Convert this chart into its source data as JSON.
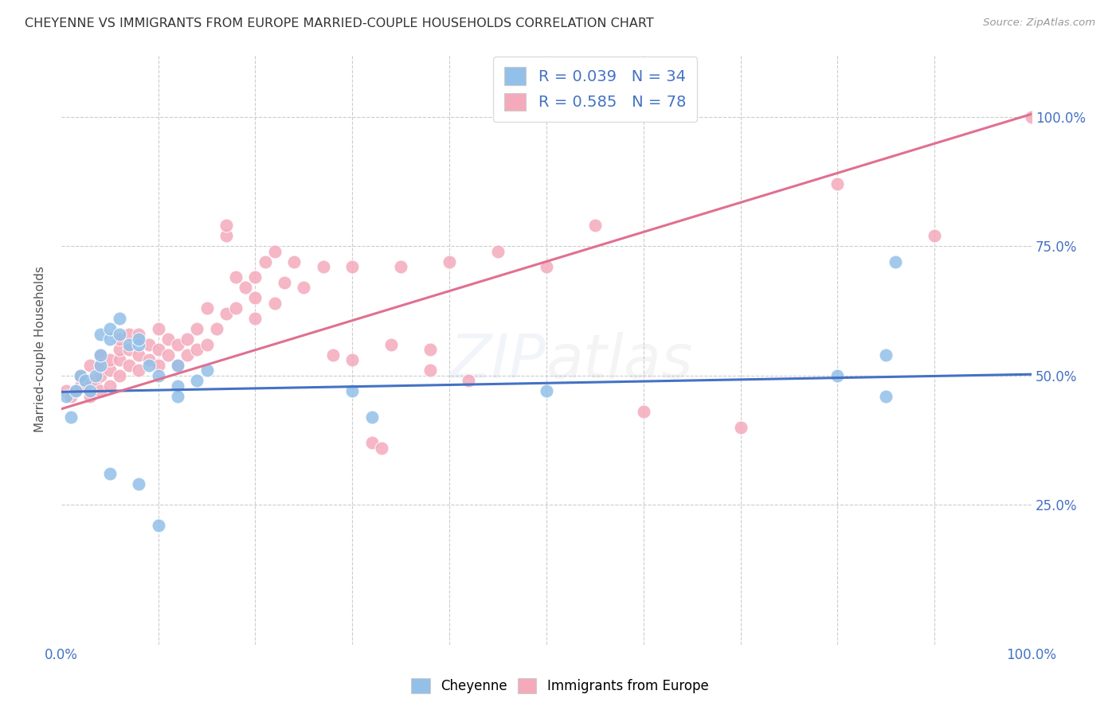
{
  "title": "CHEYENNE VS IMMIGRANTS FROM EUROPE MARRIED-COUPLE HOUSEHOLDS CORRELATION CHART",
  "source": "Source: ZipAtlas.com",
  "ylabel": "Married-couple Households",
  "xlim": [
    0,
    1.0
  ],
  "ylim": [
    -0.02,
    1.12
  ],
  "blue_color": "#92C0E8",
  "pink_color": "#F4AABB",
  "blue_line_color": "#4472C4",
  "pink_line_color": "#E07090",
  "legend_text_color": "#4472C4",
  "watermark": "ZIPatlas",
  "cheyenne_R": "0.039",
  "cheyenne_N": "34",
  "immigrants_R": "0.585",
  "immigrants_N": "78",
  "cheyenne_line": [
    [
      0.0,
      0.468
    ],
    [
      1.0,
      0.502
    ]
  ],
  "immigrants_line": [
    [
      0.0,
      0.435
    ],
    [
      1.0,
      1.005
    ]
  ],
  "cheyenne_points": [
    [
      0.005,
      0.46
    ],
    [
      0.01,
      0.42
    ],
    [
      0.015,
      0.47
    ],
    [
      0.02,
      0.5
    ],
    [
      0.025,
      0.49
    ],
    [
      0.03,
      0.47
    ],
    [
      0.035,
      0.5
    ],
    [
      0.04,
      0.52
    ],
    [
      0.04,
      0.54
    ],
    [
      0.04,
      0.58
    ],
    [
      0.05,
      0.57
    ],
    [
      0.05,
      0.59
    ],
    [
      0.06,
      0.58
    ],
    [
      0.06,
      0.61
    ],
    [
      0.07,
      0.56
    ],
    [
      0.08,
      0.56
    ],
    [
      0.08,
      0.57
    ],
    [
      0.09,
      0.52
    ],
    [
      0.1,
      0.5
    ],
    [
      0.12,
      0.48
    ],
    [
      0.12,
      0.52
    ],
    [
      0.12,
      0.46
    ],
    [
      0.14,
      0.49
    ],
    [
      0.15,
      0.51
    ],
    [
      0.3,
      0.47
    ],
    [
      0.32,
      0.42
    ],
    [
      0.5,
      0.47
    ],
    [
      0.8,
      0.5
    ],
    [
      0.85,
      0.46
    ],
    [
      0.85,
      0.54
    ],
    [
      0.86,
      0.72
    ],
    [
      0.1,
      0.21
    ],
    [
      0.05,
      0.31
    ],
    [
      0.08,
      0.29
    ]
  ],
  "immigrants_points": [
    [
      0.005,
      0.47
    ],
    [
      0.01,
      0.46
    ],
    [
      0.015,
      0.47
    ],
    [
      0.02,
      0.48
    ],
    [
      0.02,
      0.5
    ],
    [
      0.025,
      0.48
    ],
    [
      0.03,
      0.46
    ],
    [
      0.03,
      0.49
    ],
    [
      0.03,
      0.52
    ],
    [
      0.035,
      0.49
    ],
    [
      0.04,
      0.47
    ],
    [
      0.04,
      0.5
    ],
    [
      0.04,
      0.52
    ],
    [
      0.04,
      0.54
    ],
    [
      0.05,
      0.48
    ],
    [
      0.05,
      0.51
    ],
    [
      0.05,
      0.53
    ],
    [
      0.06,
      0.5
    ],
    [
      0.06,
      0.53
    ],
    [
      0.06,
      0.55
    ],
    [
      0.06,
      0.57
    ],
    [
      0.07,
      0.52
    ],
    [
      0.07,
      0.55
    ],
    [
      0.07,
      0.58
    ],
    [
      0.08,
      0.51
    ],
    [
      0.08,
      0.54
    ],
    [
      0.08,
      0.58
    ],
    [
      0.09,
      0.53
    ],
    [
      0.09,
      0.56
    ],
    [
      0.1,
      0.52
    ],
    [
      0.1,
      0.55
    ],
    [
      0.1,
      0.59
    ],
    [
      0.11,
      0.54
    ],
    [
      0.11,
      0.57
    ],
    [
      0.12,
      0.52
    ],
    [
      0.12,
      0.56
    ],
    [
      0.13,
      0.54
    ],
    [
      0.13,
      0.57
    ],
    [
      0.14,
      0.55
    ],
    [
      0.14,
      0.59
    ],
    [
      0.15,
      0.56
    ],
    [
      0.15,
      0.63
    ],
    [
      0.16,
      0.59
    ],
    [
      0.17,
      0.62
    ],
    [
      0.17,
      0.77
    ],
    [
      0.17,
      0.79
    ],
    [
      0.18,
      0.63
    ],
    [
      0.18,
      0.69
    ],
    [
      0.19,
      0.67
    ],
    [
      0.2,
      0.61
    ],
    [
      0.2,
      0.65
    ],
    [
      0.2,
      0.69
    ],
    [
      0.21,
      0.72
    ],
    [
      0.22,
      0.64
    ],
    [
      0.22,
      0.74
    ],
    [
      0.23,
      0.68
    ],
    [
      0.24,
      0.72
    ],
    [
      0.25,
      0.67
    ],
    [
      0.27,
      0.71
    ],
    [
      0.28,
      0.54
    ],
    [
      0.3,
      0.53
    ],
    [
      0.3,
      0.71
    ],
    [
      0.32,
      0.37
    ],
    [
      0.33,
      0.36
    ],
    [
      0.34,
      0.56
    ],
    [
      0.35,
      0.71
    ],
    [
      0.38,
      0.51
    ],
    [
      0.38,
      0.55
    ],
    [
      0.4,
      0.72
    ],
    [
      0.42,
      0.49
    ],
    [
      0.45,
      0.74
    ],
    [
      0.5,
      0.71
    ],
    [
      0.55,
      0.79
    ],
    [
      0.6,
      0.43
    ],
    [
      0.7,
      0.4
    ],
    [
      0.8,
      0.87
    ],
    [
      0.9,
      0.77
    ],
    [
      1.0,
      1.0
    ]
  ]
}
